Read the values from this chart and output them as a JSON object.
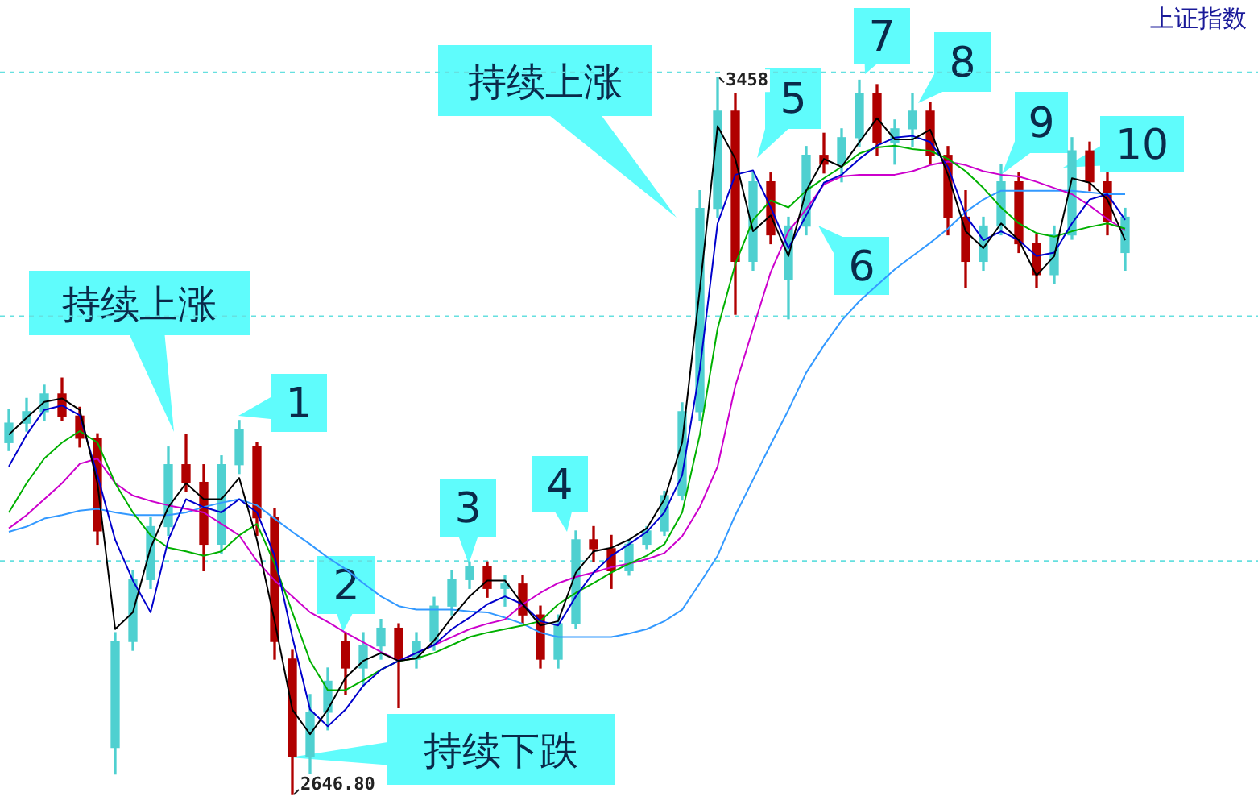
{
  "chart_data": {
    "type": "candlestick",
    "title": "上证指数",
    "tick_labels": false,
    "categories": [
      null,
      null,
      null,
      null,
      null,
      null,
      null,
      null,
      null,
      null,
      null,
      null,
      null,
      null,
      null,
      null,
      null,
      null,
      null,
      null,
      null,
      null,
      null,
      null,
      null,
      null,
      null,
      null,
      null,
      null,
      null,
      null,
      null,
      null,
      null,
      null,
      null,
      null,
      null,
      null,
      null,
      null,
      null,
      null,
      null,
      null,
      null,
      null,
      null,
      null,
      null,
      null,
      null,
      null,
      null,
      null,
      null,
      null,
      null,
      null,
      null,
      null,
      null,
      null
    ],
    "ohlc": [
      [
        3045,
        3082,
        3036,
        3067
      ],
      [
        3067,
        3095,
        3058,
        3080
      ],
      [
        3080,
        3110,
        3070,
        3100
      ],
      [
        3100,
        3118,
        3070,
        3075
      ],
      [
        3075,
        3085,
        3040,
        3050
      ],
      [
        3050,
        3055,
        2930,
        2945
      ],
      [
        2700,
        2830,
        2670,
        2820
      ],
      [
        2820,
        2900,
        2810,
        2890
      ],
      [
        2890,
        2960,
        2880,
        2950
      ],
      [
        2950,
        3040,
        2940,
        3020
      ],
      [
        3020,
        3054,
        2990,
        3000
      ],
      [
        3000,
        3020,
        2900,
        2930
      ],
      [
        2930,
        3030,
        2920,
        3020
      ],
      [
        3020,
        3070,
        3010,
        3060
      ],
      [
        3040,
        3045,
        2940,
        2960
      ],
      [
        2960,
        2970,
        2800,
        2820
      ],
      [
        2800,
        2810,
        2646.8,
        2690
      ],
      [
        2690,
        2760,
        2670,
        2740
      ],
      [
        2740,
        2790,
        2720,
        2775
      ],
      [
        2820,
        2830,
        2760,
        2790
      ],
      [
        2790,
        2830,
        2770,
        2815
      ],
      [
        2815,
        2845,
        2800,
        2835
      ],
      [
        2835,
        2840,
        2745,
        2800
      ],
      [
        2800,
        2830,
        2790,
        2820
      ],
      [
        2820,
        2870,
        2810,
        2860
      ],
      [
        2860,
        2900,
        2850,
        2890
      ],
      [
        2890,
        2910,
        2880,
        2905
      ],
      [
        2905,
        2910,
        2870,
        2880
      ],
      [
        2880,
        2895,
        2860,
        2885
      ],
      [
        2885,
        2895,
        2840,
        2850
      ],
      [
        2850,
        2860,
        2790,
        2800
      ],
      [
        2800,
        2850,
        2790,
        2840
      ],
      [
        2840,
        2945,
        2835,
        2935
      ],
      [
        2935,
        2950,
        2910,
        2925
      ],
      [
        2925,
        2940,
        2880,
        2900
      ],
      [
        2900,
        2935,
        2895,
        2930
      ],
      [
        2930,
        2950,
        2925,
        2945
      ],
      [
        2945,
        2990,
        2940,
        2985
      ],
      [
        2985,
        3090,
        2980,
        3080
      ],
      [
        3080,
        3330,
        3070,
        3310
      ],
      [
        3310,
        3458,
        3300,
        3420
      ],
      [
        3420,
        3440,
        3190,
        3250
      ],
      [
        3250,
        3350,
        3240,
        3340
      ],
      [
        3340,
        3350,
        3270,
        3280
      ],
      [
        3230,
        3300,
        3185,
        3290
      ],
      [
        3290,
        3380,
        3280,
        3370
      ],
      [
        3370,
        3395,
        3350,
        3360
      ],
      [
        3360,
        3400,
        3340,
        3390
      ],
      [
        3390,
        3455,
        3380,
        3440
      ],
      [
        3440,
        3450,
        3370,
        3385
      ],
      [
        3385,
        3410,
        3360,
        3400
      ],
      [
        3400,
        3440,
        3380,
        3420
      ],
      [
        3420,
        3430,
        3360,
        3370
      ],
      [
        3370,
        3380,
        3280,
        3300
      ],
      [
        3300,
        3330,
        3220,
        3250
      ],
      [
        3250,
        3300,
        3240,
        3290
      ],
      [
        3290,
        3360,
        3280,
        3340
      ],
      [
        3340,
        3350,
        3260,
        3270
      ],
      [
        3270,
        3280,
        3220,
        3235
      ],
      [
        3235,
        3290,
        3225,
        3280
      ],
      [
        3280,
        3390,
        3275,
        3375
      ],
      [
        3375,
        3385,
        3330,
        3340
      ],
      [
        3340,
        3350,
        3280,
        3295
      ],
      [
        3260,
        3310,
        3240,
        3300
      ]
    ],
    "colors": [
      "#4fd0d0",
      "#4fd0d0",
      "#4fd0d0",
      "#b00000",
      "#b00000",
      "#b00000",
      "#4fd0d0",
      "#4fd0d0",
      "#4fd0d0",
      "#4fd0d0",
      "#b00000",
      "#b00000",
      "#4fd0d0",
      "#4fd0d0",
      "#b00000",
      "#b00000",
      "#b00000",
      "#4fd0d0",
      "#4fd0d0",
      "#b00000",
      "#4fd0d0",
      "#4fd0d0",
      "#b00000",
      "#4fd0d0",
      "#4fd0d0",
      "#4fd0d0",
      "#4fd0d0",
      "#b00000",
      "#4fd0d0",
      "#b00000",
      "#b00000",
      "#4fd0d0",
      "#4fd0d0",
      "#b00000",
      "#b00000",
      "#4fd0d0",
      "#4fd0d0",
      "#4fd0d0",
      "#4fd0d0",
      "#4fd0d0",
      "#4fd0d0",
      "#b00000",
      "#4fd0d0",
      "#b00000",
      "#4fd0d0",
      "#4fd0d0",
      "#b00000",
      "#4fd0d0",
      "#4fd0d0",
      "#b00000",
      "#4fd0d0",
      "#4fd0d0",
      "#b00000",
      "#b00000",
      "#b00000",
      "#4fd0d0",
      "#4fd0d0",
      "#b00000",
      "#b00000",
      "#4fd0d0",
      "#4fd0d0",
      "#b00000",
      "#b00000",
      "#4fd0d0"
    ],
    "series": [
      {
        "type": "line",
        "color": "#000000",
        "values": [
          3054,
          3073,
          3091,
          3095,
          3082,
          2999,
          2834,
          2853,
          2926,
          2972,
          2999,
          2981,
          2981,
          3005,
          2935,
          2843,
          2743,
          2715,
          2743,
          2779,
          2798,
          2807,
          2798,
          2801,
          2821,
          2847,
          2871,
          2889,
          2889,
          2862,
          2838,
          2843,
          2898,
          2922,
          2926,
          2935,
          2948,
          2981,
          3045,
          3219,
          3403,
          3366,
          3284,
          3302,
          3256,
          3330,
          3366,
          3357,
          3385,
          3412,
          3388,
          3388,
          3399,
          3348,
          3284,
          3265,
          3293,
          3274,
          3234,
          3256,
          3344,
          3339,
          3320,
          3274
        ]
      },
      {
        "type": "line",
        "color": "#0000cc",
        "values": [
          3018,
          3054,
          3082,
          3087,
          3076,
          3008,
          2935,
          2889,
          2853,
          2935,
          2981,
          2972,
          2966,
          2981,
          2966,
          2917,
          2825,
          2743,
          2724,
          2743,
          2770,
          2788,
          2798,
          2807,
          2816,
          2834,
          2847,
          2862,
          2871,
          2862,
          2843,
          2838,
          2871,
          2898,
          2917,
          2930,
          2944,
          2966,
          3008,
          3128,
          3293,
          3348,
          3353,
          3311,
          3265,
          3302,
          3339,
          3348,
          3366,
          3381,
          3390,
          3392,
          3385,
          3357,
          3302,
          3274,
          3284,
          3274,
          3256,
          3260,
          3293,
          3320,
          3326,
          3297
        ]
      },
      {
        "type": "line",
        "color": "#00b000",
        "values": [
          2966,
          2999,
          3027,
          3045,
          3058,
          3045,
          2999,
          2966,
          2940,
          2926,
          2922,
          2917,
          2922,
          2940,
          2953,
          2908,
          2853,
          2798,
          2765,
          2765,
          2776,
          2788,
          2798,
          2801,
          2807,
          2816,
          2825,
          2830,
          2834,
          2838,
          2843,
          2862,
          2875,
          2886,
          2898,
          2908,
          2917,
          2930,
          2966,
          3054,
          3174,
          3247,
          3297,
          3319,
          3311,
          3330,
          3344,
          3357,
          3372,
          3379,
          3381,
          3377,
          3375,
          3366,
          3352,
          3333,
          3311,
          3293,
          3282,
          3278,
          3284,
          3289,
          3293,
          3287
        ]
      },
      {
        "type": "line",
        "color": "#cc00cc",
        "values": [
          2948,
          2963,
          2981,
          2999,
          3021,
          3027,
          2999,
          2985,
          2979,
          2974,
          2970,
          2966,
          2953,
          2940,
          2911,
          2889,
          2871,
          2853,
          2842,
          2830,
          2819,
          2808,
          2798,
          2807,
          2816,
          2825,
          2834,
          2840,
          2845,
          2862,
          2875,
          2886,
          2893,
          2898,
          2904,
          2908,
          2913,
          2920,
          2939,
          2972,
          3018,
          3109,
          3174,
          3238,
          3284,
          3309,
          3337,
          3346,
          3348,
          3348,
          3348,
          3352,
          3359,
          3363,
          3359,
          3352,
          3348,
          3346,
          3340,
          3333,
          3326,
          3313,
          3298,
          3285
        ]
      },
      {
        "type": "line",
        "color": "#3399ff",
        "values": [
          2944,
          2950,
          2959,
          2963,
          2968,
          2970,
          2966,
          2963,
          2963,
          2963,
          2966,
          2972,
          2977,
          2981,
          2974,
          2959,
          2944,
          2930,
          2915,
          2902,
          2886,
          2871,
          2860,
          2856,
          2856,
          2856,
          2854,
          2853,
          2847,
          2840,
          2830,
          2825,
          2825,
          2825,
          2825,
          2829,
          2834,
          2843,
          2856,
          2886,
          2917,
          2963,
          3003,
          3043,
          3082,
          3124,
          3155,
          3183,
          3205,
          3223,
          3241,
          3256,
          3271,
          3287,
          3306,
          3320,
          3330,
          3330,
          3330,
          3330,
          3330,
          3328,
          3326,
          3326
        ]
      }
    ],
    "ref_lines": [
      {
        "axis": "y",
        "value": 3464,
        "color": "#66e0e0",
        "line_style": "dashed"
      },
      {
        "axis": "y",
        "value": 3188,
        "color": "#66e0e0",
        "line_style": "dashed"
      },
      {
        "axis": "y",
        "value": 2911,
        "color": "#66e0e0",
        "line_style": "dashed"
      }
    ],
    "annotations": [
      "持续上涨",
      "持续上涨",
      "持续下跌",
      "1",
      "2",
      "3",
      "4",
      "5",
      "6",
      "7",
      "8",
      "9",
      "10",
      "3458",
      "2646.80"
    ]
  }
}
